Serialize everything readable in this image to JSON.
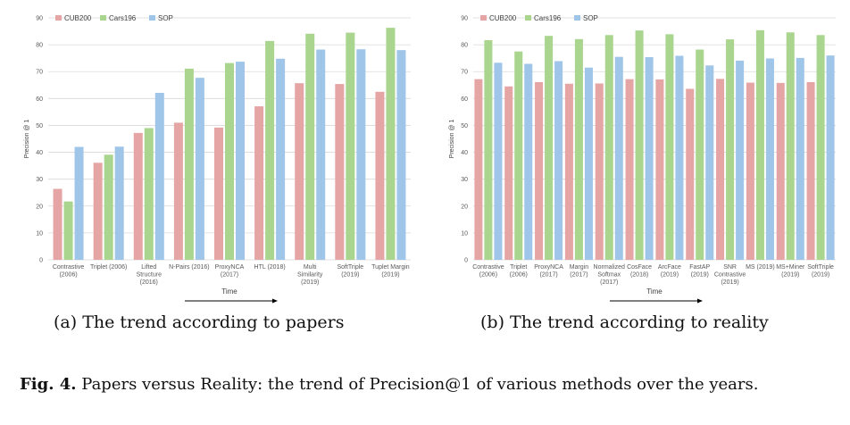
{
  "colors": {
    "CUB200": "#e6a5a5",
    "Cars196": "#a9d58e",
    "SOP": "#9fc5e8",
    "grid": "#d9d9d9",
    "axis": "#bfbfbf"
  },
  "captions": {
    "a": "(a) The trend according to papers",
    "b": "(b) The trend according to reality"
  },
  "figure_caption": {
    "label": "Fig. 4.",
    "text": "Papers versus Reality: the trend of Precision@1 of various methods over the years."
  },
  "chart_data": [
    {
      "type": "bar",
      "ylabel": "Precision @ 1",
      "xlabel": "Time",
      "ylim": [
        0,
        90
      ],
      "yticks": [
        0,
        10,
        20,
        30,
        40,
        50,
        60,
        70,
        80,
        90
      ],
      "grid": true,
      "legend": "top-left",
      "categories": [
        [
          "Contrastive",
          "(2006)"
        ],
        [
          "Triplet (2006)"
        ],
        [
          "Lifted",
          "Structure",
          "(2016)"
        ],
        [
          "N-Pairs (2016)"
        ],
        [
          "ProxyNCA",
          "(2017)"
        ],
        [
          "HTL (2018)"
        ],
        [
          "Multi",
          "Similarity",
          "(2019)"
        ],
        [
          "SoftTriple",
          "(2019)"
        ],
        [
          "Tuplet Margin",
          "(2019)"
        ]
      ],
      "series": [
        {
          "name": "CUB200",
          "values": [
            26.4,
            36.1,
            47.2,
            51.0,
            49.2,
            57.1,
            65.7,
            65.4,
            62.5
          ]
        },
        {
          "name": "Cars196",
          "values": [
            21.7,
            39.1,
            49.0,
            71.1,
            73.2,
            81.4,
            84.1,
            84.5,
            86.3
          ]
        },
        {
          "name": "SOP",
          "values": [
            42.0,
            42.1,
            62.1,
            67.7,
            73.7,
            74.8,
            78.2,
            78.3,
            78.0
          ]
        }
      ]
    },
    {
      "type": "bar",
      "ylabel": "Precision @ 1",
      "xlabel": "Time",
      "ylim": [
        0,
        90
      ],
      "yticks": [
        0,
        10,
        20,
        30,
        40,
        50,
        60,
        70,
        80,
        90
      ],
      "grid": true,
      "legend": "top-left",
      "categories": [
        [
          "Contrastive",
          "(2006)"
        ],
        [
          "Triplet",
          "(2006)"
        ],
        [
          "ProxyNCA",
          "(2017)"
        ],
        [
          "Margin",
          "(2017)"
        ],
        [
          "Normalized",
          "Softmax",
          "(2017)"
        ],
        [
          "CosFace",
          "(2018)"
        ],
        [
          "ArcFace",
          "(2019)"
        ],
        [
          "FastAP",
          "(2019)"
        ],
        [
          "SNR",
          "Contrastive",
          "(2019)"
        ],
        [
          "MS (2019)"
        ],
        [
          "MS+Miner",
          "(2019)"
        ],
        [
          "SoftTriple",
          "(2019)"
        ]
      ],
      "series": [
        {
          "name": "CUB200",
          "values": [
            67.2,
            64.5,
            66.1,
            65.5,
            65.6,
            67.2,
            67.1,
            63.6,
            67.3,
            65.9,
            65.8,
            66.1
          ]
        },
        {
          "name": "Cars196",
          "values": [
            81.7,
            77.5,
            83.3,
            82.1,
            83.6,
            85.3,
            83.9,
            78.2,
            82.0,
            85.4,
            84.6,
            83.6
          ]
        },
        {
          "name": "SOP",
          "values": [
            73.3,
            72.9,
            73.9,
            71.5,
            75.5,
            75.4,
            75.9,
            72.3,
            74.1,
            74.9,
            75.1,
            76.0
          ]
        }
      ]
    }
  ]
}
